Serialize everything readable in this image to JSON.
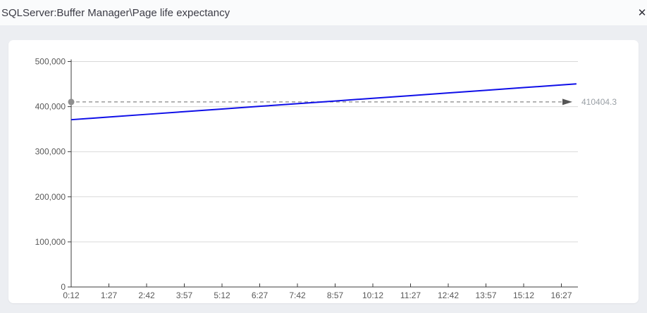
{
  "header": {
    "title": "SQLServer:Buffer Manager\\Page life expectancy",
    "close_icon": "✕"
  },
  "colors": {
    "series_blue": "#0f0fe8",
    "reference_gray": "#9a9a9a",
    "arrow_gray": "#555555",
    "marker_gray": "#8f8f8f",
    "axis_dark": "#3c3c3c",
    "grid_light": "#d9d9d9",
    "card_bg": "#ffffff",
    "page_bg": "#eceef2"
  },
  "chart_data": {
    "type": "line",
    "title": "SQLServer:Buffer Manager\\Page life expectancy",
    "xlabel": "",
    "ylabel": "",
    "ylim": [
      0,
      500000
    ],
    "grid": "horizontal",
    "legend_position": "none",
    "y_ticks": {
      "values": [
        0,
        100000,
        200000,
        300000,
        400000,
        500000
      ],
      "labels": [
        "0",
        "100,000",
        "200,000",
        "300,000",
        "400,000",
        "500,000"
      ]
    },
    "x_tick_labels": [
      "0:12",
      "1:27",
      "2:42",
      "3:57",
      "5:12",
      "6:27",
      "7:42",
      "8:57",
      "10:12",
      "11:27",
      "12:42",
      "13:57",
      "15:12",
      "16:27"
    ],
    "series": [
      {
        "name": "Page life expectancy",
        "color": "#0f0fe8",
        "x": [
          "0:12",
          "1:27",
          "2:42",
          "3:57",
          "5:12",
          "6:27",
          "7:42",
          "8:57",
          "10:12",
          "11:27",
          "12:42",
          "13:57",
          "15:12",
          "16:27",
          "16:57"
        ],
        "values": [
          371000,
          376900,
          382900,
          388800,
          394700,
          400700,
          406600,
          412500,
          418500,
          424400,
          430300,
          436300,
          442200,
          448100,
          450400
        ]
      }
    ],
    "reference_line": {
      "value": 410404.3,
      "label": "410404.3",
      "style": "dashed",
      "color": "#9a9a9a",
      "marker": "circle-at-axis",
      "arrow": "right"
    }
  }
}
